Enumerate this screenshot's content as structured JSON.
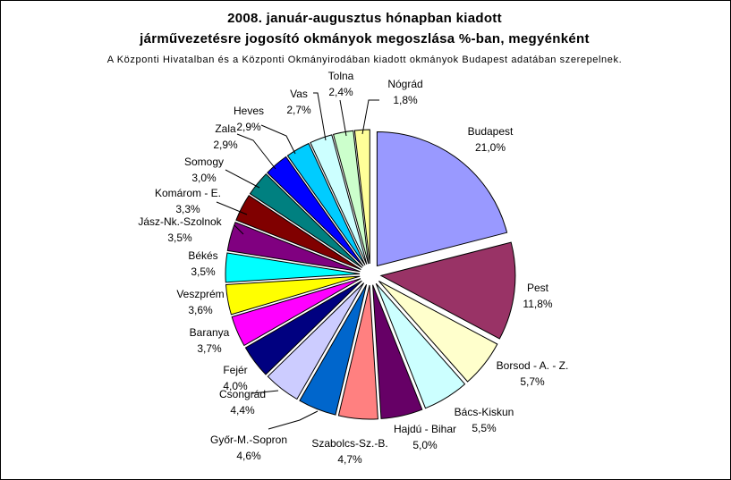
{
  "chart_data": {
    "type": "pie",
    "title": "2008. január-augusztus hónapban kiadott",
    "title_line2": "járművezetésre jogosító okmányok megoszlása %-ban, megyénként",
    "subtitle": "A Központi Hivatalban és a Központi Okmányirodában kiadott okmányok Budapest adatában szerepelnek.",
    "exploded": true,
    "legend": "none",
    "slices": [
      {
        "label": "Budapest",
        "value_label": "21,0%",
        "value": 21.0,
        "color": "#9999FF"
      },
      {
        "label": "Pest",
        "value_label": "11,8%",
        "value": 11.8,
        "color": "#993366"
      },
      {
        "label": "Borsod - A. - Z.",
        "value_label": "5,7%",
        "value": 5.7,
        "color": "#FFFFCC"
      },
      {
        "label": "Bács-Kiskun",
        "value_label": "5,5%",
        "value": 5.5,
        "color": "#CCFFFF"
      },
      {
        "label": "Hajdú - Bihar",
        "value_label": "5,0%",
        "value": 5.0,
        "color": "#660066"
      },
      {
        "label": "Szabolcs-Sz.-B.",
        "value_label": "4,7%",
        "value": 4.7,
        "color": "#FF8080"
      },
      {
        "label": "Győr-M.-Sopron",
        "value_label": "4,6%",
        "value": 4.6,
        "color": "#0066CC"
      },
      {
        "label": "Csongrád",
        "value_label": "4,4%",
        "value": 4.4,
        "color": "#CCCCFF"
      },
      {
        "label": "Fejér",
        "value_label": "4,0%",
        "value": 4.0,
        "color": "#000080"
      },
      {
        "label": "Baranya",
        "value_label": "3,7%",
        "value": 3.7,
        "color": "#FF00FF"
      },
      {
        "label": "Veszprém",
        "value_label": "3,6%",
        "value": 3.6,
        "color": "#FFFF00"
      },
      {
        "label": "Békés",
        "value_label": "3,5%",
        "value": 3.5,
        "color": "#00FFFF"
      },
      {
        "label": "Jász-Nk.-Szolnok",
        "value_label": "3,5%",
        "value": 3.5,
        "color": "#800080"
      },
      {
        "label": "Komárom - E.",
        "value_label": "3,3%",
        "value": 3.3,
        "color": "#800000"
      },
      {
        "label": "Somogy",
        "value_label": "3,0%",
        "value": 3.0,
        "color": "#008080"
      },
      {
        "label": "Zala",
        "value_label": "2,9%",
        "value": 2.9,
        "color": "#0000FF"
      },
      {
        "label": "Heves",
        "value_label": "2,9%",
        "value": 2.9,
        "color": "#00CCFF"
      },
      {
        "label": "Vas",
        "value_label": "2,7%",
        "value": 2.7,
        "color": "#CCFFFF"
      },
      {
        "label": "Tolna",
        "value_label": "2,4%",
        "value": 2.4,
        "color": "#CCFFCC"
      },
      {
        "label": "Nógrád",
        "value_label": "1,8%",
        "value": 1.8,
        "color": "#FFFF99"
      }
    ]
  }
}
